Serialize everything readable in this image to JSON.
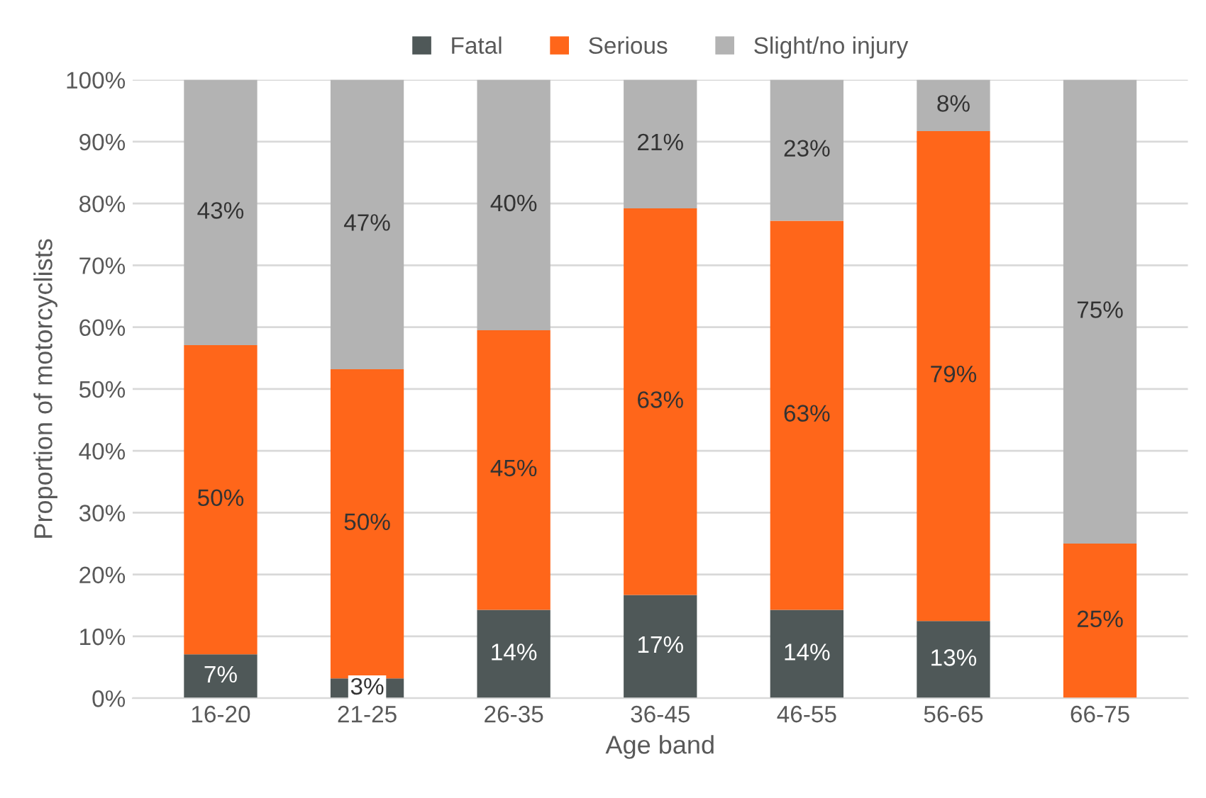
{
  "chart_data": {
    "type": "bar",
    "stacked": true,
    "xlabel": "Age band",
    "ylabel": "Proportion of motorcyclists",
    "categories": [
      "16-20",
      "21-25",
      "26-35",
      "36-45",
      "46-55",
      "56-65",
      "66-75"
    ],
    "series": [
      {
        "name": "Fatal",
        "color": "#4f5858",
        "values": [
          7.1,
          3.2,
          14.3,
          16.7,
          14.3,
          12.5,
          0
        ],
        "value_labels": [
          "7%",
          "3%",
          "14%",
          "17%",
          "14%",
          "13%",
          null
        ]
      },
      {
        "name": "Serious",
        "color": "#ff661a",
        "values": [
          50,
          50,
          45.2,
          62.5,
          62.9,
          79.2,
          25
        ],
        "value_labels": [
          "50%",
          "50%",
          "45%",
          "63%",
          "63%",
          "79%",
          "25%"
        ]
      },
      {
        "name": "Slight/no injury",
        "color": "#b3b3b3",
        "values": [
          42.9,
          46.8,
          40.5,
          20.8,
          22.8,
          8.3,
          75
        ],
        "value_labels": [
          "43%",
          "47%",
          "40%",
          "21%",
          "23%",
          "8%",
          "75%"
        ]
      }
    ],
    "ylim": [
      0,
      100
    ],
    "yticks": [
      {
        "value": 0,
        "label": "0%"
      },
      {
        "value": 10,
        "label": "10%"
      },
      {
        "value": 20,
        "label": "20%"
      },
      {
        "value": 30,
        "label": "30%"
      },
      {
        "value": 40,
        "label": "40%"
      },
      {
        "value": 50,
        "label": "50%"
      },
      {
        "value": 60,
        "label": "60%"
      },
      {
        "value": 70,
        "label": "70%"
      },
      {
        "value": 80,
        "label": "80%"
      },
      {
        "value": 90,
        "label": "90%"
      },
      {
        "value": 100,
        "label": "100%"
      }
    ],
    "grid": "y",
    "legend": "top"
  }
}
